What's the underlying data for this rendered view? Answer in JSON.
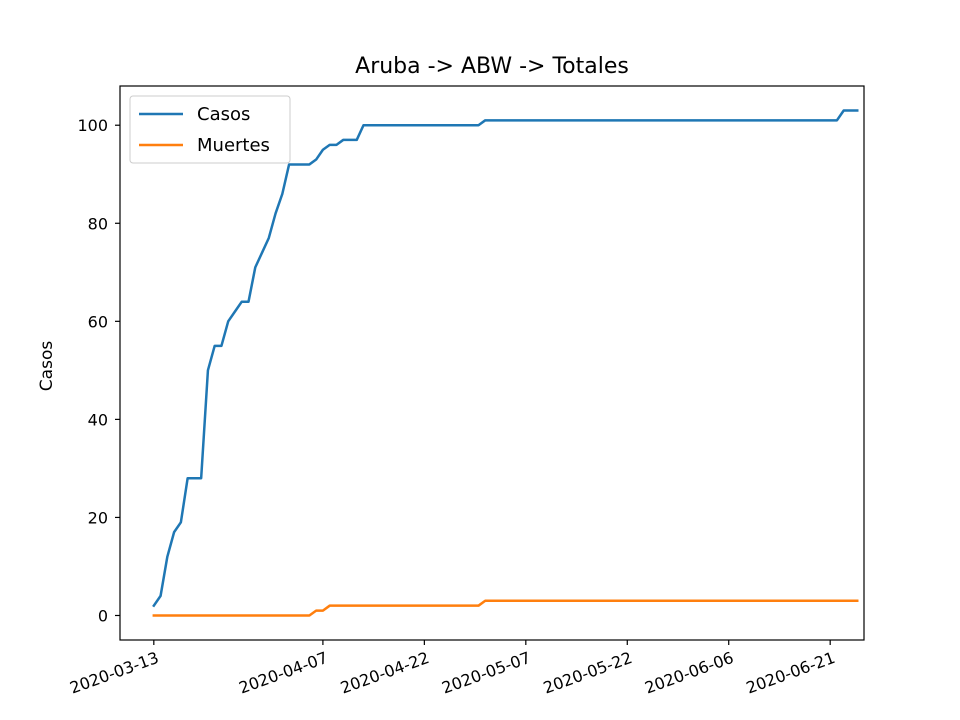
{
  "chart_data": {
    "type": "line",
    "title": "Aruba -> ABW -> Totales",
    "xlabel": "",
    "ylabel": "Casos",
    "x_start": "2020-03-13",
    "x_ticks": [
      "2020-03-13",
      "2020-04-07",
      "2020-04-22",
      "2020-05-07",
      "2020-05-22",
      "2020-06-06",
      "2020-06-21"
    ],
    "y_ticks": [
      0,
      20,
      40,
      60,
      80,
      100
    ],
    "ylim": [
      -5,
      108
    ],
    "xlim": [
      "2020-03-08",
      "2020-06-26"
    ],
    "grid": false,
    "legend_position": "upper-left",
    "series": [
      {
        "name": "Casos",
        "color": "#1f77b4",
        "points": [
          [
            "2020-03-13",
            2
          ],
          [
            "2020-03-14",
            4
          ],
          [
            "2020-03-15",
            12
          ],
          [
            "2020-03-16",
            17
          ],
          [
            "2020-03-17",
            19
          ],
          [
            "2020-03-18",
            28
          ],
          [
            "2020-03-19",
            28
          ],
          [
            "2020-03-20",
            28
          ],
          [
            "2020-03-21",
            50
          ],
          [
            "2020-03-22",
            55
          ],
          [
            "2020-03-23",
            55
          ],
          [
            "2020-03-24",
            60
          ],
          [
            "2020-03-25",
            62
          ],
          [
            "2020-03-26",
            64
          ],
          [
            "2020-03-27",
            64
          ],
          [
            "2020-03-28",
            71
          ],
          [
            "2020-03-29",
            74
          ],
          [
            "2020-03-30",
            77
          ],
          [
            "2020-03-31",
            82
          ],
          [
            "2020-04-01",
            86
          ],
          [
            "2020-04-02",
            92
          ],
          [
            "2020-04-03",
            92
          ],
          [
            "2020-04-04",
            92
          ],
          [
            "2020-04-05",
            92
          ],
          [
            "2020-04-06",
            93
          ],
          [
            "2020-04-07",
            95
          ],
          [
            "2020-04-08",
            96
          ],
          [
            "2020-04-09",
            96
          ],
          [
            "2020-04-10",
            97
          ],
          [
            "2020-04-11",
            97
          ],
          [
            "2020-04-12",
            97
          ],
          [
            "2020-04-13",
            100
          ],
          [
            "2020-04-29",
            100
          ],
          [
            "2020-04-30",
            100
          ],
          [
            "2020-05-01",
            101
          ],
          [
            "2020-06-22",
            101
          ],
          [
            "2020-06-23",
            103
          ],
          [
            "2020-06-24",
            103
          ],
          [
            "2020-06-25",
            103
          ]
        ]
      },
      {
        "name": "Muertes",
        "color": "#ff7f0e",
        "points": [
          [
            "2020-03-13",
            0
          ],
          [
            "2020-04-05",
            0
          ],
          [
            "2020-04-06",
            1
          ],
          [
            "2020-04-07",
            1
          ],
          [
            "2020-04-08",
            2
          ],
          [
            "2020-04-30",
            2
          ],
          [
            "2020-05-01",
            3
          ],
          [
            "2020-06-25",
            3
          ]
        ]
      }
    ]
  }
}
